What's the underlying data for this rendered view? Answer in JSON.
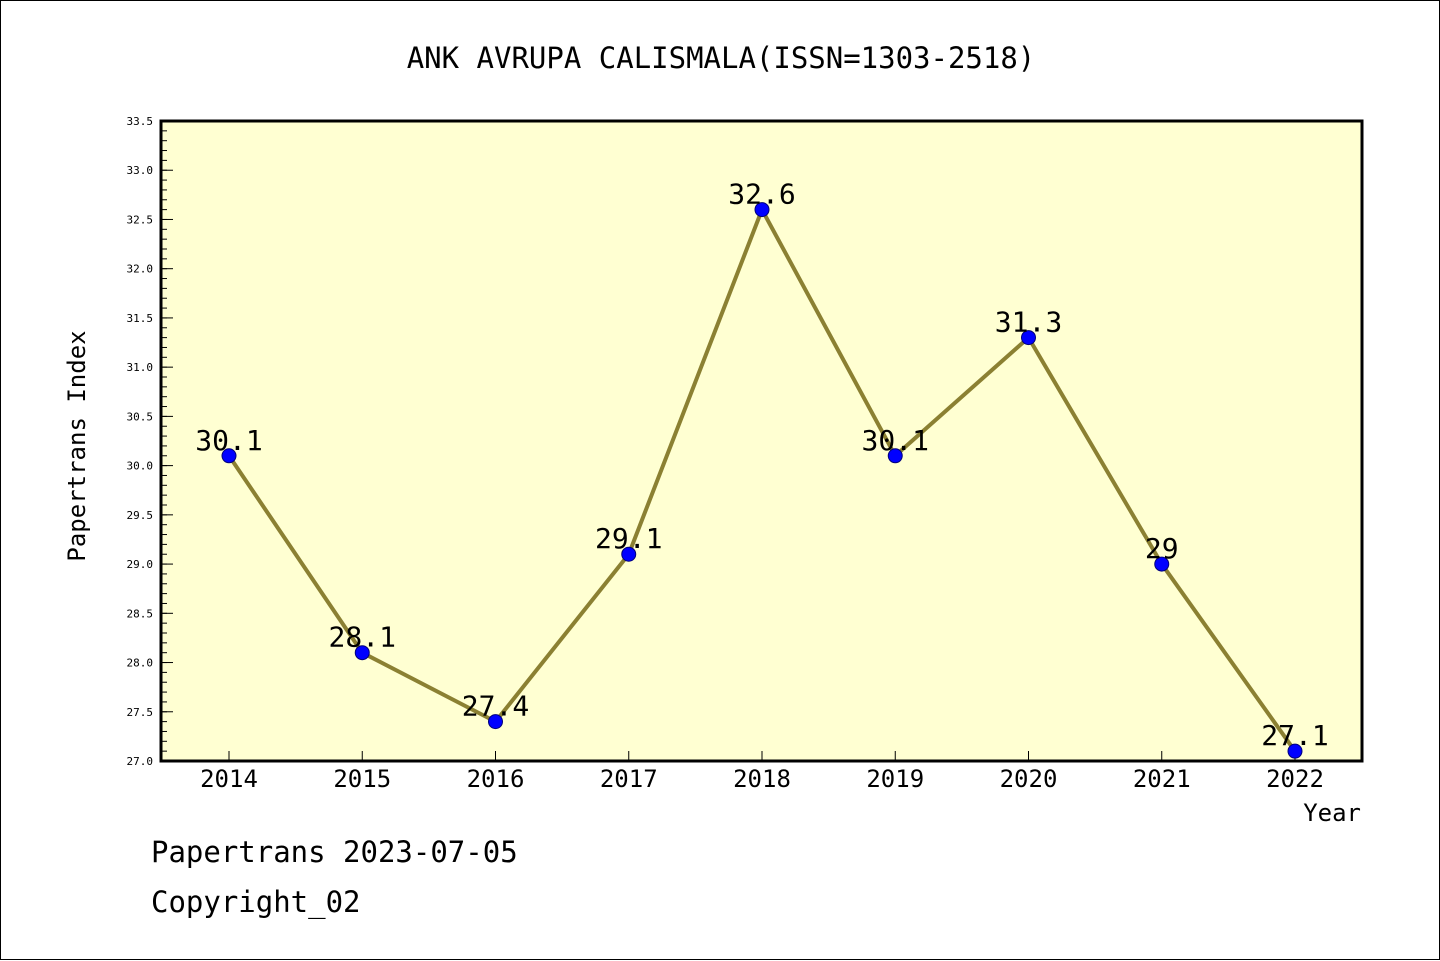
{
  "chart_data": {
    "type": "line",
    "title": "ANK AVRUPA CALISMALA(ISSN=1303-2518)",
    "xlabel": "Year",
    "ylabel": "Papertrans Index",
    "categories": [
      "2014",
      "2015",
      "2016",
      "2017",
      "2018",
      "2019",
      "2020",
      "2021",
      "2022"
    ],
    "series": [
      {
        "values": [
          30.1,
          28.1,
          27.4,
          29.1,
          32.6,
          30.1,
          31.3,
          29.0,
          27.1
        ],
        "labels": [
          "30.1",
          "28.1",
          "27.4",
          "29.1",
          "32.6",
          "30.1",
          "31.3",
          "29",
          "27.1"
        ]
      }
    ],
    "ylim": [
      27.0,
      33.5
    ],
    "yticks": [
      "27.0",
      "27.5",
      "28.0",
      "28.5",
      "29.0",
      "29.5",
      "30.0",
      "30.5",
      "31.0",
      "31.5",
      "32.0",
      "32.5",
      "33.0",
      "33.5"
    ],
    "grid": false,
    "colors": {
      "plot_background": "#ffffd2",
      "line": "#8b8032",
      "marker": "#0000ff"
    }
  },
  "footer": {
    "line1": "Papertrans 2023-07-05",
    "line2": "Copyright_02"
  }
}
